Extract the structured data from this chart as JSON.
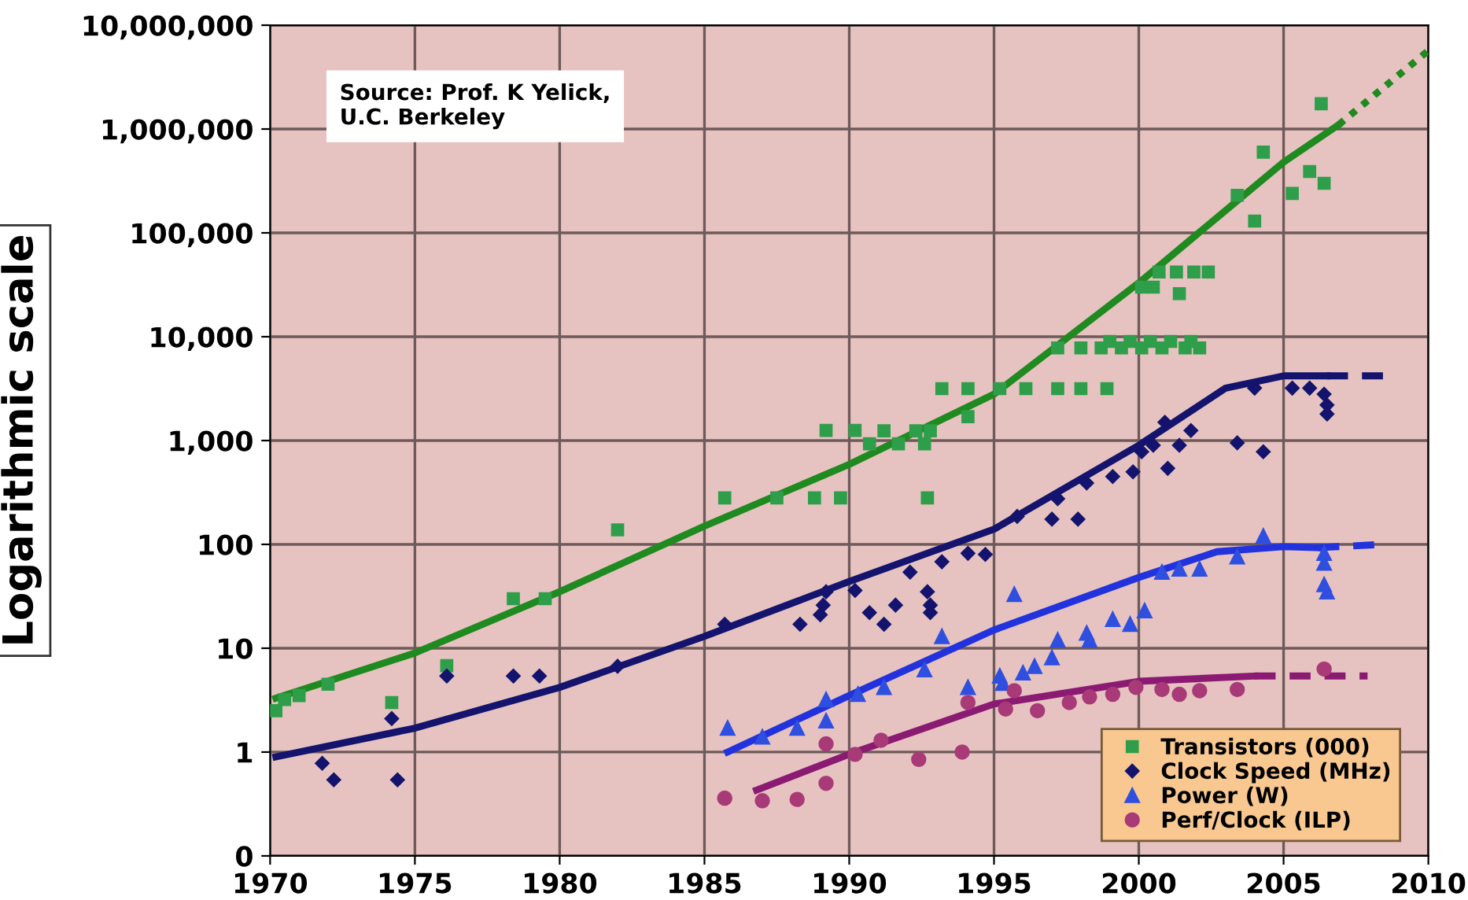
{
  "chart_data": {
    "type": "scatter",
    "ylabel": "Logarithmic scale",
    "log": true,
    "grid": true,
    "legend": "bottom right",
    "xlim": [
      1970,
      2010
    ],
    "xticks": [
      1970,
      1975,
      1980,
      1985,
      1990,
      1995,
      2000,
      2005,
      2010
    ],
    "ylim": [
      0.1,
      10000000
    ],
    "yticks": [
      {
        "value": 0.1,
        "label": "0"
      },
      1,
      10,
      100,
      {
        "value": 1000,
        "label": "1,000"
      },
      {
        "value": 10000,
        "label": "10,000"
      },
      {
        "value": 100000,
        "label": "100,000"
      },
      {
        "value": 1000000,
        "label": "1,000,000"
      },
      {
        "value": 10000000,
        "label": "10,000,000"
      }
    ],
    "annotations": [
      "Source: Prof. K Yelick,\nU.C. Berkeley"
    ],
    "series": [
      {
        "type": "line",
        "color": "#1f8a1f",
        "line_style": "solid",
        "x": [
          1970.2,
          1975,
          1980,
          1985,
          1990,
          1995,
          2000,
          2005,
          2006.9
        ],
        "values": [
          3.3,
          9,
          35,
          150,
          590,
          2800,
          33000,
          480000,
          1100000
        ]
      },
      {
        "type": "line",
        "color": "#1f8a1f",
        "line_style": "dotted",
        "x": [
          2006.9,
          2010
        ],
        "values": [
          1100000,
          5700000
        ]
      },
      {
        "type": "line",
        "color": "#14146e",
        "line_style": "solid",
        "x": [
          1970.2,
          1975,
          1980,
          1985,
          1990,
          1995,
          2000,
          2003,
          2005,
          2006.5
        ],
        "values": [
          0.9,
          1.7,
          4.2,
          13,
          44,
          140,
          900,
          3200,
          4200,
          4200
        ]
      },
      {
        "type": "line",
        "color": "#14146e",
        "line_style": "dashed",
        "x": [
          2006.5,
          2008.5
        ],
        "values": [
          4200,
          4200
        ]
      },
      {
        "type": "line",
        "color": "#2233dd",
        "line_style": "solid",
        "x": [
          1985.8,
          1990,
          1995,
          2000,
          2002.7,
          2005,
          2006.2
        ],
        "values": [
          1.0,
          3.5,
          15,
          48,
          85,
          95,
          93
        ]
      },
      {
        "type": "line",
        "color": "#2233dd",
        "line_style": "dashed",
        "x": [
          2006.2,
          2008.4
        ],
        "values": [
          93,
          100
        ]
      },
      {
        "type": "line",
        "color": "#8b1a73",
        "line_style": "solid",
        "x": [
          1986.8,
          1990.2,
          1995,
          2000,
          2004
        ],
        "values": [
          0.43,
          1.0,
          2.9,
          4.8,
          5.4
        ]
      },
      {
        "type": "line",
        "color": "#8b1a73",
        "line_style": "dashed",
        "x": [
          2004,
          2007.9
        ],
        "values": [
          5.4,
          5.4
        ]
      },
      {
        "name": "Transistors (000)",
        "marker": "square",
        "color": "#2e9e4a",
        "x": [
          1970.2,
          1970.5,
          1971,
          1972,
          1974.2,
          1976.1,
          1978.4,
          1979.5,
          1982,
          1985.7,
          1987.5,
          1988.8,
          1989.7,
          1989.2,
          1990.2,
          1991.2,
          1992.3,
          1992.8,
          1990.7,
          1991.7,
          1992.6,
          1992.7,
          1993.2,
          1994.1,
          1995.2,
          1996.1,
          1997.2,
          1998,
          1998.9,
          1994.1,
          1997.2,
          1998,
          1998.7,
          1999.4,
          2000.1,
          2000.8,
          2001.6,
          2002.1,
          1999,
          1999.7,
          2000.4,
          2001.1,
          2001.8,
          2000.7,
          2001.3,
          2001.9,
          2002.4,
          2000.1,
          2000.5,
          2001.4,
          2003.4,
          2004,
          2004.3,
          2005.3,
          2005.9,
          2006.4,
          2006.3
        ],
        "values": [
          2.5,
          3.2,
          3.5,
          4.5,
          3.0,
          6.8,
          30,
          30,
          138,
          280,
          280,
          280,
          280,
          1250,
          1250,
          1240,
          1240,
          1240,
          930,
          930,
          930,
          280,
          3160,
          3160,
          3160,
          3160,
          3160,
          3160,
          3160,
          1700,
          7800,
          7800,
          7800,
          7800,
          7800,
          7800,
          7800,
          7800,
          9000,
          9000,
          9000,
          9000,
          9000,
          42000,
          42000,
          42000,
          42000,
          30000,
          30000,
          26000,
          230000,
          130000,
          600000,
          240000,
          390000,
          300000,
          1750000
        ]
      },
      {
        "name": "Clock Speed (MHz)",
        "marker": "diamond",
        "color": "#14146e",
        "x": [
          1971.8,
          1972.2,
          1974.2,
          1974.4,
          1976.1,
          1978.4,
          1979.3,
          1982,
          1985.7,
          1988.3,
          1989,
          1989.1,
          1989.2,
          1990.2,
          1990.7,
          1991.2,
          1991.6,
          1992.1,
          1992.7,
          1992.8,
          1992.8,
          1993.2,
          1994.1,
          1994.7,
          1995.8,
          1997,
          1997.2,
          1997.9,
          1998.2,
          1999.1,
          1999.8,
          2000.1,
          2000.5,
          2000.9,
          2001,
          2001.4,
          2001.8,
          2003.4,
          2004.3,
          2004,
          2005.3,
          2005.9,
          2006.4,
          2006.5,
          2006.5
        ],
        "values": [
          0.78,
          0.54,
          2.1,
          0.54,
          5.4,
          5.4,
          5.4,
          6.7,
          17,
          17,
          21,
          26,
          35,
          36,
          22,
          17,
          26,
          54,
          35,
          26,
          22,
          68,
          82,
          80,
          186,
          175,
          275,
          175,
          390,
          450,
          500,
          780,
          900,
          1500,
          540,
          900,
          1250,
          950,
          780,
          3200,
          3200,
          3200,
          2800,
          2200,
          1800
        ]
      },
      {
        "name": "Power (W)",
        "marker": "triangle",
        "color": "#2f4fe0",
        "x": [
          1985.8,
          1987,
          1988.2,
          1989.2,
          1989.2,
          1990.3,
          1991.2,
          1992.6,
          1993.2,
          1994.1,
          1995.2,
          1995.3,
          1995.7,
          1996,
          1996.4,
          1997,
          1997.2,
          1998.2,
          1998.3,
          1999.1,
          1999.7,
          2000.2,
          2000.8,
          2001.4,
          2002.1,
          2003.4,
          2004.3,
          2006.4,
          2006.4,
          2006.4,
          2006.5
        ],
        "values": [
          1.7,
          1.4,
          1.7,
          2.0,
          3.2,
          3.6,
          4.2,
          6.2,
          13,
          4.2,
          5.4,
          4.6,
          33,
          5.8,
          6.7,
          8.1,
          12,
          14,
          12,
          19,
          17,
          23,
          54,
          58,
          58,
          76,
          120,
          82,
          66,
          41,
          35
        ]
      },
      {
        "name": "Perf/Clock (ILP)",
        "marker": "circle",
        "color": "#a83a78",
        "x": [
          1985.7,
          1987,
          1988.2,
          1989.2,
          1989.2,
          1990.2,
          1991.1,
          1992.4,
          1993.9,
          1994.1,
          1995.4,
          1995.7,
          1996.5,
          1997.6,
          1998.3,
          1999.1,
          1999.9,
          2000.8,
          2001.4,
          2002.1,
          2003.4,
          2006.4
        ],
        "values": [
          0.36,
          0.34,
          0.35,
          0.5,
          1.2,
          0.95,
          1.3,
          0.85,
          1.0,
          3.0,
          2.6,
          3.9,
          2.5,
          3.0,
          3.4,
          3.6,
          4.2,
          4.0,
          3.6,
          3.9,
          4.0,
          6.3
        ]
      }
    ]
  }
}
